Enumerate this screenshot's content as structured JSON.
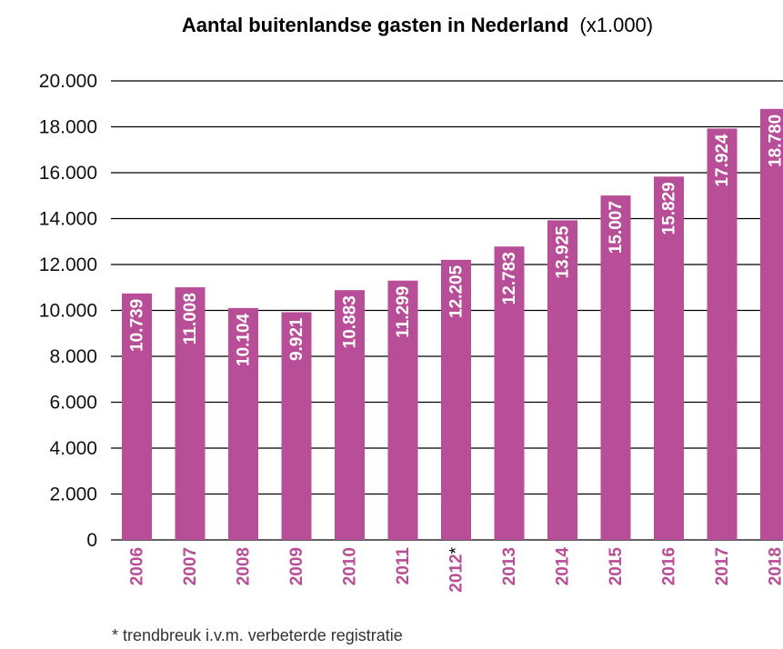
{
  "chart_data": {
    "type": "bar",
    "title": "Aantal buitenlandse gasten in Nederland",
    "title_unit": "(x1.000)",
    "categories": [
      "2006",
      "2007",
      "2008",
      "2009",
      "2010",
      "2011",
      "2012",
      "2013",
      "2014",
      "2015",
      "2016",
      "2017",
      "2018"
    ],
    "category_markers": [
      "",
      "",
      "",
      "",
      "",
      "",
      "*",
      "",
      "",
      "",
      "",
      "",
      ""
    ],
    "values": [
      10739,
      11008,
      10104,
      9921,
      10883,
      11299,
      12205,
      12783,
      13925,
      15007,
      15829,
      17924,
      18780
    ],
    "value_labels": [
      "10.739",
      "11.008",
      "10.104",
      "9.921",
      "10.883",
      "11.299",
      "12.205",
      "12.783",
      "13.925",
      "15.007",
      "15.829",
      "17.924",
      "18.780"
    ],
    "ylim": [
      0,
      20000
    ],
    "yticks": [
      0,
      2000,
      4000,
      6000,
      8000,
      10000,
      12000,
      14000,
      16000,
      18000,
      20000
    ],
    "ytick_labels": [
      "0",
      "2.000",
      "4.000",
      "6.000",
      "8.000",
      "10.000",
      "12.000",
      "14.000",
      "16.000",
      "18.000",
      "20.000"
    ],
    "grid": true,
    "bar_color": "#b84d98",
    "footnote": "* trendbreuk i.v.m. verbeterde registratie"
  }
}
